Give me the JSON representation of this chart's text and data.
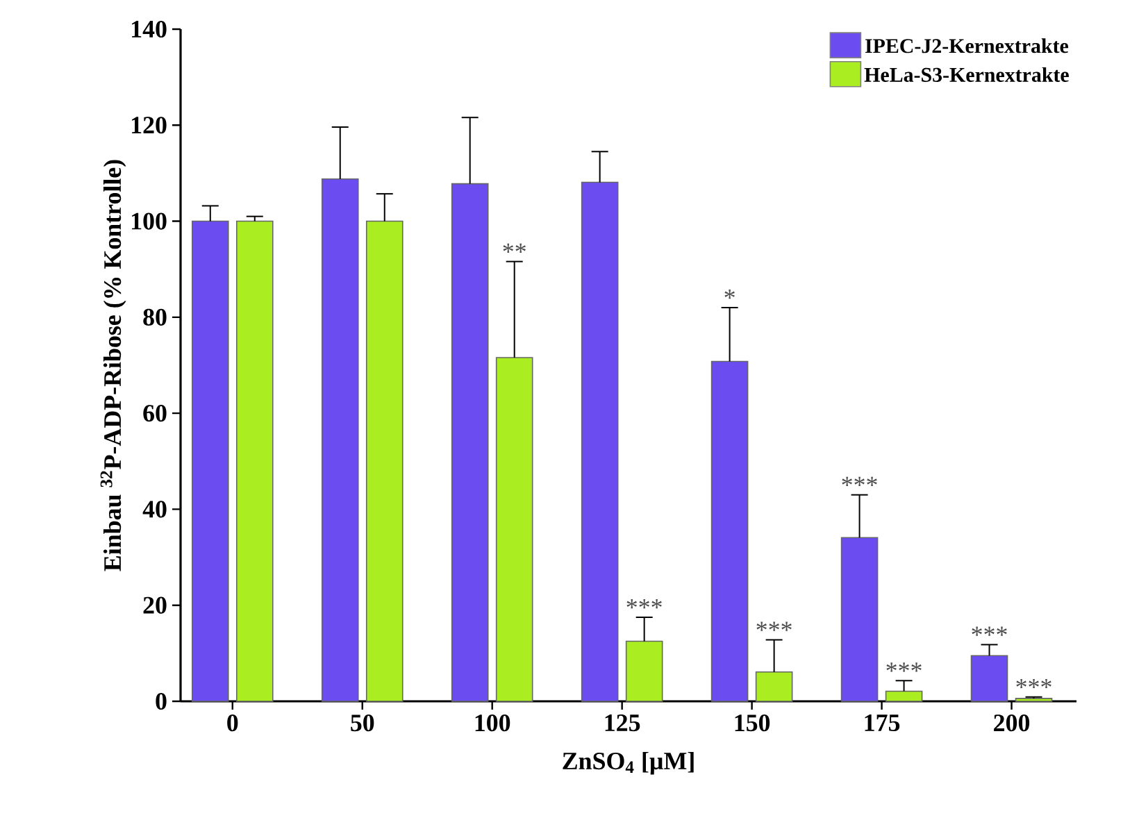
{
  "chart_data": {
    "type": "bar",
    "xlabel": "ZnSO$_{4}$ [µM]",
    "ylabel": "Einbau $^{32}$P-ADP-Ribose (% Kontrolle)",
    "categories": [
      "0",
      "50",
      "100",
      "125",
      "150",
      "175",
      "200"
    ],
    "series": [
      {
        "name": "IPEC-J2-Kernextrakte",
        "color": "#6a4cf0",
        "values": [
          100,
          108.8,
          107.8,
          108.1,
          70.8,
          34.1,
          9.5
        ],
        "errors": [
          3.2,
          10.8,
          13.8,
          6.4,
          11.2,
          8.9,
          2.3
        ]
      },
      {
        "name": "HeLa-S3-Kernextrakte",
        "color": "#aaee22",
        "values": [
          100,
          100,
          71.6,
          12.5,
          6.1,
          2.1,
          0.6
        ],
        "errors": [
          1,
          5.7,
          20,
          5,
          6.7,
          2.2,
          0.3
        ]
      }
    ],
    "ylim": [
      0,
      140
    ],
    "yticks": [
      0,
      20,
      40,
      60,
      80,
      100,
      120,
      140
    ],
    "legend": "top right",
    "grid": false,
    "annotations": [
      {
        "text": "**",
        "x": "100",
        "y": 91.6
      },
      {
        "text": "***",
        "x": "125",
        "y": 12.5
      },
      {
        "text": "*",
        "x": "150",
        "y": 70.8
      },
      {
        "text": "***",
        "x": "150",
        "y": 6.1
      },
      {
        "text": "***",
        "x": "175",
        "y": 34.1
      },
      {
        "text": "***",
        "x": "175",
        "y": 2.1
      },
      {
        "text": "***",
        "x": "200",
        "y": 9.5
      },
      {
        "text": "***",
        "x": "200",
        "y": 0.6
      }
    ]
  }
}
